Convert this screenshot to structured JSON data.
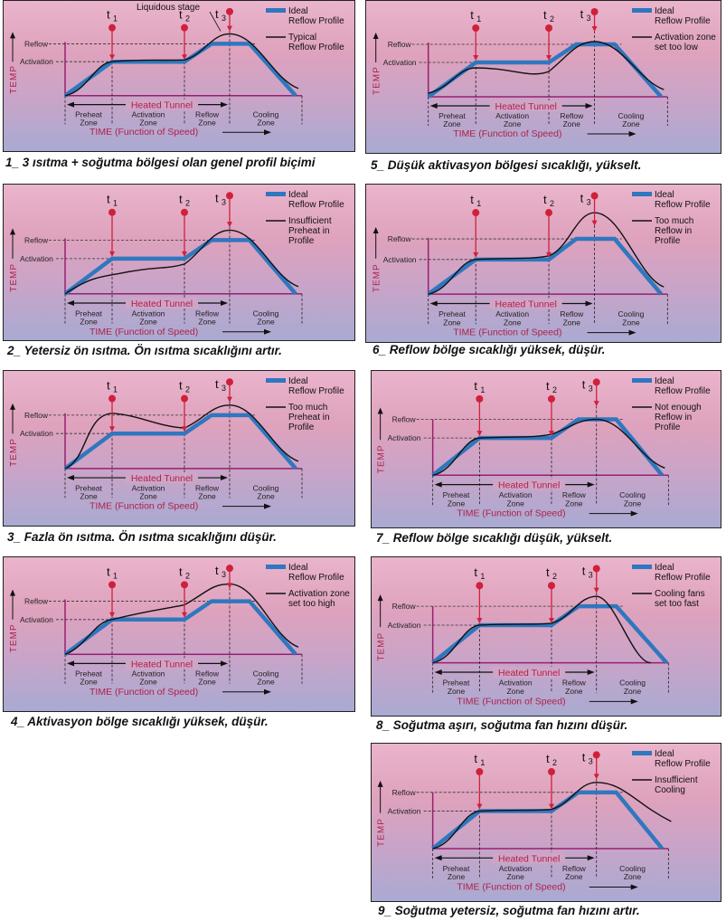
{
  "colors": {
    "ideal": "#2f77bf",
    "actual": "#111111",
    "axis": "#9a1f6e",
    "marker": "#d0203a",
    "label_red": "#b0204a"
  },
  "common_labels": {
    "reflow": "Reflow",
    "activation": "Activation",
    "temp": "TEMP",
    "heated_tunnel": "Heated Tunnel",
    "time_axis": "TIME (Function of Speed)",
    "t1": "t",
    "t2": "t",
    "t3": "t",
    "t1_sub": "1",
    "t2_sub": "2",
    "t3_sub": "3",
    "zones": [
      {
        "line1": "Preheat",
        "line2": "Zone"
      },
      {
        "line1": "Activation",
        "line2": "Zone"
      },
      {
        "line1": "Reflow",
        "line2": "Zone"
      },
      {
        "line1": "Cooling",
        "line2": "Zone"
      }
    ],
    "legend_ideal": [
      "Ideal",
      "Reflow Profile"
    ]
  },
  "panels": [
    {
      "id": 1,
      "caption": "1_ 3 ısıtma + soğutma bölgesi olan genel profil biçimi",
      "legend_actual": [
        "Typical",
        "Reflow Profile"
      ],
      "annotation": "Liquidous stage",
      "profile": "typical"
    },
    {
      "id": 2,
      "caption": "2_ Yetersiz ön ısıtma. Ön ısıtma sıcaklığını artır.",
      "legend_actual": [
        "Insufficient",
        "Preheat in",
        "Profile"
      ],
      "profile": "insufficient_preheat"
    },
    {
      "id": 3,
      "caption": "3_ Fazla ön ısıtma. Ön ısıtma sıcaklığını düşür.",
      "legend_actual": [
        "Too much",
        "Preheat in",
        "Profile"
      ],
      "profile": "too_much_preheat"
    },
    {
      "id": 4,
      "caption": "4_ Aktivasyon bölge sıcaklığı yüksek, düşür.",
      "legend_actual": [
        "Activation zone",
        "set too high"
      ],
      "profile": "activation_high"
    },
    {
      "id": 5,
      "caption": "5_ Düşük aktivasyon bölgesi sıcaklığı, yükselt.",
      "legend_actual": [
        "Activation zone",
        "set too low"
      ],
      "profile": "activation_low"
    },
    {
      "id": 6,
      "caption": "6_ Reflow bölge sıcaklığı yüksek, düşür.",
      "legend_actual": [
        "Too much",
        "Reflow in",
        "Profile"
      ],
      "profile": "too_much_reflow"
    },
    {
      "id": 7,
      "caption": "7_ Reflow bölge sıcaklığı düşük, yükselt.",
      "legend_actual": [
        "Not enough",
        "Reflow in",
        "Profile"
      ],
      "profile": "not_enough_reflow"
    },
    {
      "id": 8,
      "caption": "8_ Soğutma aşırı, soğutma fan hızını düşür.",
      "legend_actual": [
        "Cooling fans",
        "set too fast"
      ],
      "profile": "cooling_fast"
    },
    {
      "id": 9,
      "caption": "9_ Soğutma yetersiz, soğutma fan hızını artır.",
      "legend_actual": [
        "Insufficient",
        "Cooling"
      ],
      "profile": "insufficient_cooling"
    }
  ]
}
